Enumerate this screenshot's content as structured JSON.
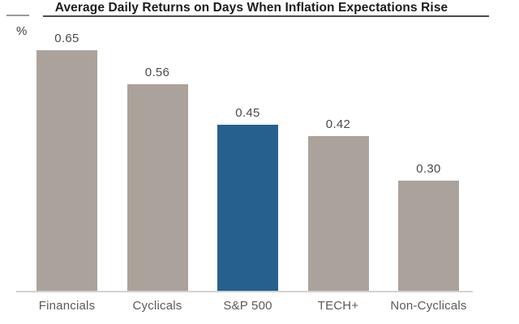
{
  "chart_data": {
    "type": "bar",
    "title": "Average Daily Returns on Days When Inflation Expectations Rise",
    "ylabel": "%",
    "xlabel": "",
    "categories": [
      "Financials",
      "Cyclicals",
      "S&P 500",
      "TECH+",
      "Non-Cyclicals"
    ],
    "values": [
      0.65,
      0.56,
      0.45,
      0.42,
      0.3
    ],
    "value_label_format": "2-decimals",
    "highlighted_category": "S&P 500",
    "grid": false,
    "legend": false,
    "ylim": [
      0,
      0.72
    ],
    "colors": {
      "bar_default": "#ABA39B",
      "bar_highlight": "#26608E",
      "axis_line": "#D5D2CF",
      "title_underline": "#4A4A4A",
      "value_label": "#4A4A4A",
      "category_label": "#5A5A5A",
      "title_text": "#1C1C1C"
    }
  }
}
